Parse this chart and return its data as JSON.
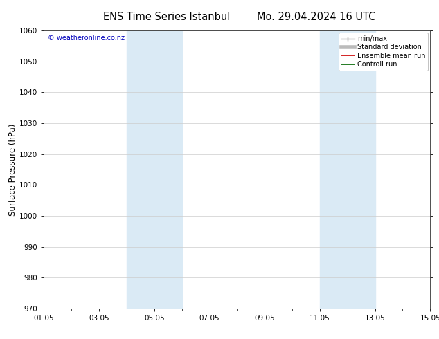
{
  "title_left": "ENS Time Series Istanbul",
  "title_right": "Mo. 29.04.2024 16 UTC",
  "ylabel": "Surface Pressure (hPa)",
  "ylim": [
    970,
    1060
  ],
  "yticks": [
    970,
    980,
    990,
    1000,
    1010,
    1020,
    1030,
    1040,
    1050,
    1060
  ],
  "xlim": [
    0,
    14
  ],
  "xtick_positions": [
    0,
    2,
    4,
    6,
    8,
    10,
    12,
    14
  ],
  "xtick_labels": [
    "01.05",
    "03.05",
    "05.05",
    "07.05",
    "09.05",
    "11.05",
    "13.05",
    "15.05"
  ],
  "shaded_bands": [
    {
      "xmin": 3.0,
      "xmax": 4.0
    },
    {
      "xmin": 4.0,
      "xmax": 5.0
    },
    {
      "xmin": 10.0,
      "xmax": 11.0
    },
    {
      "xmin": 11.0,
      "xmax": 12.0
    }
  ],
  "shade_color_dark": "#c5dff0",
  "shade_color_light": "#ddeef8",
  "watermark": "© weatheronline.co.nz",
  "watermark_color": "#0000bb",
  "legend_entries": [
    {
      "label": "min/max",
      "color": "#999999",
      "lw": 1.0,
      "style": "minmax"
    },
    {
      "label": "Standard deviation",
      "color": "#bbbbbb",
      "lw": 4.0
    },
    {
      "label": "Ensemble mean run",
      "color": "#cc0000",
      "lw": 1.2
    },
    {
      "label": "Controll run",
      "color": "#006600",
      "lw": 1.2
    }
  ],
  "bg_color": "#ffffff",
  "grid_color": "#cccccc",
  "title_fontsize": 10.5,
  "tick_fontsize": 7.5,
  "ylabel_fontsize": 8.5,
  "shade_color": "#daeaf5"
}
